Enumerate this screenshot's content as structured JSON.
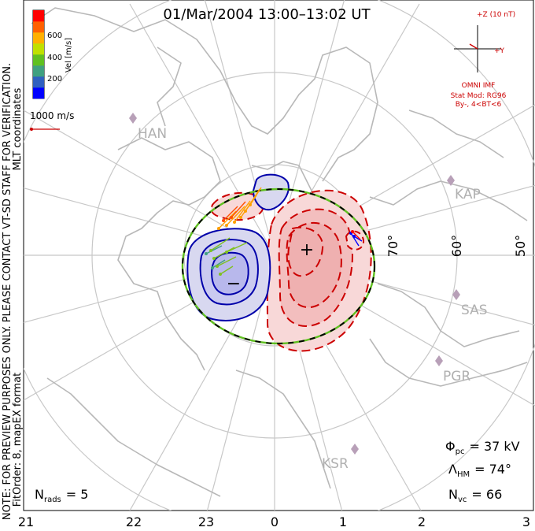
{
  "title": "01/Mar/2004 13:00–13:02 UT",
  "side_note": {
    "coords": "MLT coordinates",
    "preview": "NOTE: FOR PREVIEW PURPOSES ONLY. PLEASE CONTACT VT-SD STAFF FOR VERIFICATION.",
    "fit": "FitOrder: 8, mapEX format"
  },
  "colorbar": {
    "label": "Vel [m/s]",
    "ticks": [
      "600",
      "400",
      "200"
    ],
    "colors": [
      "#0000ff",
      "#3060c0",
      "#40a080",
      "#60c020",
      "#c0e000",
      "#ffb000",
      "#ff6000",
      "#ff0000"
    ]
  },
  "scale": {
    "label": "1000 m/s",
    "color": "#cc0000"
  },
  "imf": {
    "z_label": "+Z (10 nT)",
    "y_label": "+Y",
    "source": "OMNI IMF",
    "model": "Stat Mod: RG96",
    "condition": "By-, 4<BT<6",
    "color": "#cc0000"
  },
  "radars": [
    {
      "code": "HAN"
    },
    {
      "code": "KAP"
    },
    {
      "code": "SAS"
    },
    {
      "code": "PGR"
    },
    {
      "code": "KSR"
    }
  ],
  "lat_labels": [
    "70°",
    "60°",
    "50°"
  ],
  "mlt_ticks": [
    "21",
    "22",
    "23",
    "0",
    "1",
    "2",
    "3"
  ],
  "potential": {
    "plus": "+",
    "minus": "−",
    "positive_color": "#cc0000",
    "negative_color": "#0000aa"
  },
  "stats": {
    "phi_symbol": "Φ",
    "phi_sub": "pc",
    "phi_value": "= 37 kV",
    "lambda_symbol": "Λ",
    "lambda_sub": "HM",
    "lambda_value": "= 74°",
    "nvc_symbol": "N",
    "nvc_sub": "vc",
    "nvc_value": "= 66",
    "nrads_symbol": "N",
    "nrads_sub": "rads",
    "nrads_value": "= 5"
  }
}
